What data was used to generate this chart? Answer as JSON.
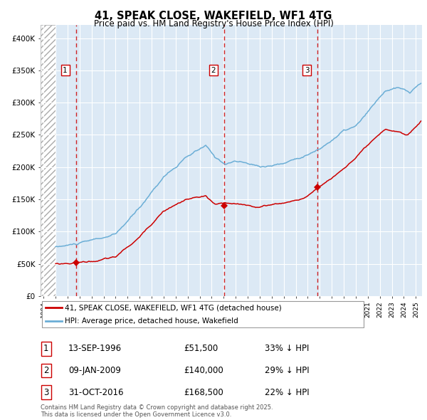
{
  "title": "41, SPEAK CLOSE, WAKEFIELD, WF1 4TG",
  "subtitle": "Price paid vs. HM Land Registry's House Price Index (HPI)",
  "legend_line1": "41, SPEAK CLOSE, WAKEFIELD, WF1 4TG (detached house)",
  "legend_line2": "HPI: Average price, detached house, Wakefield",
  "sale1_date": "13-SEP-1996",
  "sale1_price": 51500,
  "sale1_hpi": "33% ↓ HPI",
  "sale2_date": "09-JAN-2009",
  "sale2_price": 140000,
  "sale2_hpi": "29% ↓ HPI",
  "sale3_date": "31-OCT-2016",
  "sale3_price": 168500,
  "sale3_hpi": "22% ↓ HPI",
  "footnote": "Contains HM Land Registry data © Crown copyright and database right 2025.\nThis data is licensed under the Open Government Licence v3.0.",
  "hpi_color": "#6baed6",
  "price_color": "#cc0000",
  "vline_color": "#cc0000",
  "bg_color": "#dce9f5",
  "hatch_color": "#aaaaaa",
  "grid_color": "#ffffff",
  "ylim": [
    0,
    420000
  ],
  "xlim_start": 1993.75,
  "xlim_end": 2025.5,
  "sale1_t": 1996.7,
  "sale2_t": 2009.03,
  "sale3_t": 2016.83
}
